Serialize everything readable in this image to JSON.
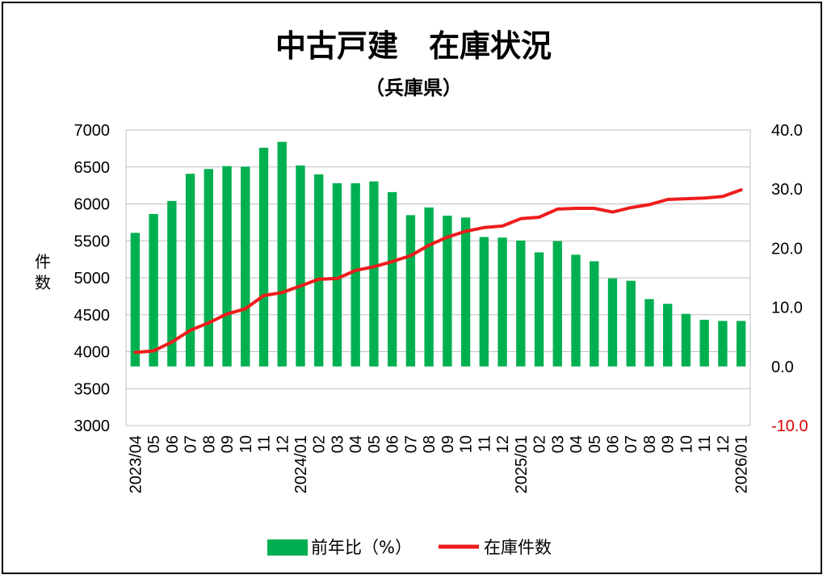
{
  "chart_data": {
    "type": "bar+line",
    "title": "中古戸建　在庫状況",
    "subtitle": "（兵庫県）",
    "ylabel_left": "件\n数",
    "left_axis": {
      "min": 3000,
      "max": 7000,
      "step": 500,
      "ticks": [
        "3000",
        "3500",
        "4000",
        "4500",
        "5000",
        "5500",
        "6000",
        "6500",
        "7000"
      ]
    },
    "right_axis": {
      "min": -10,
      "max": 40,
      "step": 10,
      "ticks": [
        "-10.0",
        "0.0",
        "10.0",
        "20.0",
        "30.0",
        "40.0"
      ]
    },
    "gridlines": "horizontal",
    "categories": [
      "2023/04",
      "05",
      "06",
      "07",
      "08",
      "09",
      "10",
      "11",
      "12",
      "2024/01",
      "02",
      "03",
      "04",
      "05",
      "06",
      "07",
      "08",
      "09",
      "10",
      "11",
      "12",
      "2025/01",
      "02",
      "03",
      "04",
      "05",
      "06",
      "07",
      "08",
      "09",
      "10",
      "11",
      "12",
      "2026/01"
    ],
    "series": [
      {
        "name": "前年比（%）",
        "type": "bar",
        "axis": "right",
        "color": "#00b050",
        "values": [
          22.6,
          25.8,
          28.0,
          32.6,
          33.4,
          33.9,
          33.8,
          37.0,
          38.0,
          34.0,
          32.5,
          31.0,
          31.0,
          31.3,
          29.5,
          25.6,
          26.9,
          25.5,
          25.2,
          21.9,
          21.8,
          21.3,
          19.3,
          21.2,
          18.9,
          17.8,
          14.9,
          14.5,
          11.4,
          10.6,
          8.9,
          7.9,
          7.7,
          7.7
        ]
      },
      {
        "name": "在庫件数",
        "type": "line",
        "axis": "left",
        "color": "#ee1c1c",
        "values": [
          3990,
          4010,
          4130,
          4290,
          4390,
          4510,
          4580,
          4760,
          4800,
          4890,
          4980,
          4990,
          5100,
          5150,
          5220,
          5300,
          5440,
          5550,
          5630,
          5680,
          5700,
          5800,
          5820,
          5930,
          5940,
          5940,
          5890,
          5950,
          5990,
          6060,
          6070,
          6080,
          6100,
          6190
        ]
      }
    ],
    "legend": {
      "position": "bottom-center"
    }
  }
}
